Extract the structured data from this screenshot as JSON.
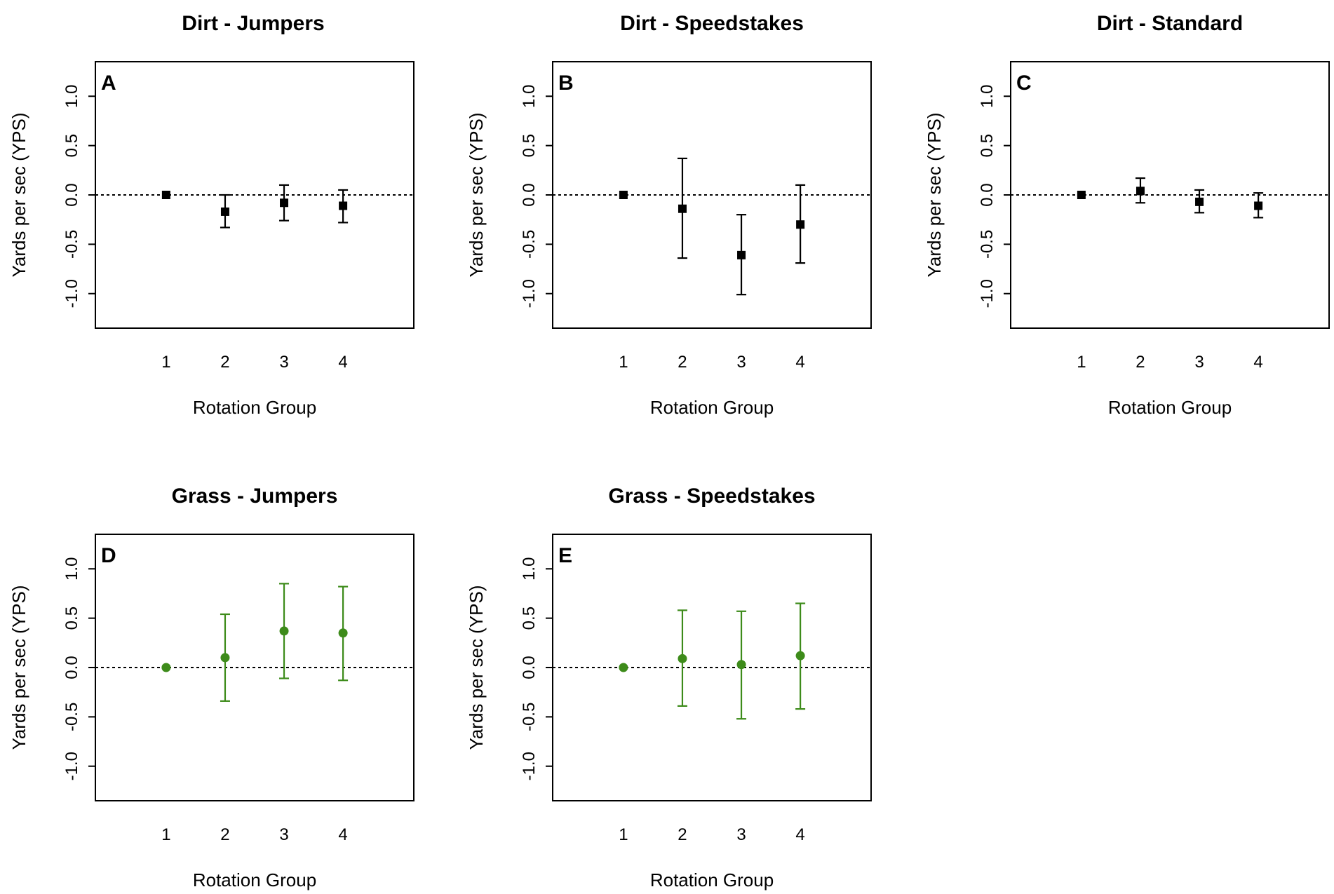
{
  "chart_data": [
    {
      "type": "scatter",
      "panel_label": "A",
      "title": "Dirt - Jumpers",
      "xlabel": "Rotation Group",
      "ylabel": "Yards per sec (YPS)",
      "categories": [
        "1",
        "2",
        "3",
        "4"
      ],
      "x": [
        1,
        2,
        3,
        4
      ],
      "values": [
        0.0,
        -0.17,
        -0.08,
        -0.11
      ],
      "lower": [
        0.0,
        -0.33,
        -0.26,
        -0.28
      ],
      "upper": [
        0.0,
        0.0,
        0.1,
        0.05
      ],
      "marker": "square",
      "color": "#000000",
      "yticks": [
        "-1.0",
        "-0.5",
        "0.0",
        "0.5",
        "1.0"
      ],
      "ylim": [
        -1.35,
        1.35
      ],
      "xlim": [
        -0.2,
        5.2
      ],
      "reference_line": 0.0
    },
    {
      "type": "scatter",
      "panel_label": "B",
      "title": "Dirt - Speedstakes",
      "xlabel": "Rotation Group",
      "ylabel": "Yards per sec (YPS)",
      "categories": [
        "1",
        "2",
        "3",
        "4"
      ],
      "x": [
        1,
        2,
        3,
        4
      ],
      "values": [
        0.0,
        -0.14,
        -0.61,
        -0.3
      ],
      "lower": [
        0.0,
        -0.64,
        -1.01,
        -0.69
      ],
      "upper": [
        0.0,
        0.37,
        -0.2,
        0.1
      ],
      "marker": "square",
      "color": "#000000",
      "yticks": [
        "-1.0",
        "-0.5",
        "0.0",
        "0.5",
        "1.0"
      ],
      "ylim": [
        -1.35,
        1.35
      ],
      "xlim": [
        -0.2,
        5.2
      ],
      "reference_line": 0.0
    },
    {
      "type": "scatter",
      "panel_label": "C",
      "title": "Dirt - Standard",
      "xlabel": "Rotation Group",
      "ylabel": "Yards per sec (YPS)",
      "categories": [
        "1",
        "2",
        "3",
        "4"
      ],
      "x": [
        1,
        2,
        3,
        4
      ],
      "values": [
        0.0,
        0.04,
        -0.07,
        -0.11
      ],
      "lower": [
        0.0,
        -0.08,
        -0.18,
        -0.23
      ],
      "upper": [
        0.0,
        0.17,
        0.05,
        0.02
      ],
      "marker": "square",
      "color": "#000000",
      "yticks": [
        "-1.0",
        "-0.5",
        "0.0",
        "0.5",
        "1.0"
      ],
      "ylim": [
        -1.35,
        1.35
      ],
      "xlim": [
        -0.2,
        5.2
      ],
      "reference_line": 0.0
    },
    {
      "type": "scatter",
      "panel_label": "D",
      "title": "Grass - Jumpers",
      "xlabel": "Rotation Group",
      "ylabel": "Yards per sec (YPS)",
      "categories": [
        "1",
        "2",
        "3",
        "4"
      ],
      "x": [
        1,
        2,
        3,
        4
      ],
      "values": [
        0.0,
        0.1,
        0.37,
        0.35
      ],
      "lower": [
        0.0,
        -0.34,
        -0.11,
        -0.13
      ],
      "upper": [
        0.0,
        0.54,
        0.85,
        0.82
      ],
      "marker": "circle",
      "color": "#3d8b1a",
      "yticks": [
        "-1.0",
        "-0.5",
        "0.0",
        "0.5",
        "1.0"
      ],
      "ylim": [
        -1.35,
        1.35
      ],
      "xlim": [
        -0.2,
        5.2
      ],
      "reference_line": 0.0
    },
    {
      "type": "scatter",
      "panel_label": "E",
      "title": "Grass - Speedstakes",
      "xlabel": "Rotation Group",
      "ylabel": "Yards per sec (YPS)",
      "categories": [
        "1",
        "2",
        "3",
        "4"
      ],
      "x": [
        1,
        2,
        3,
        4
      ],
      "values": [
        0.0,
        0.09,
        0.03,
        0.12
      ],
      "lower": [
        0.0,
        -0.39,
        -0.52,
        -0.42
      ],
      "upper": [
        0.0,
        0.58,
        0.57,
        0.65
      ],
      "marker": "circle",
      "color": "#3d8b1a",
      "yticks": [
        "-1.0",
        "-0.5",
        "0.0",
        "0.5",
        "1.0"
      ],
      "ylim": [
        -1.35,
        1.35
      ],
      "xlim": [
        -0.2,
        5.2
      ],
      "reference_line": 0.0
    }
  ]
}
